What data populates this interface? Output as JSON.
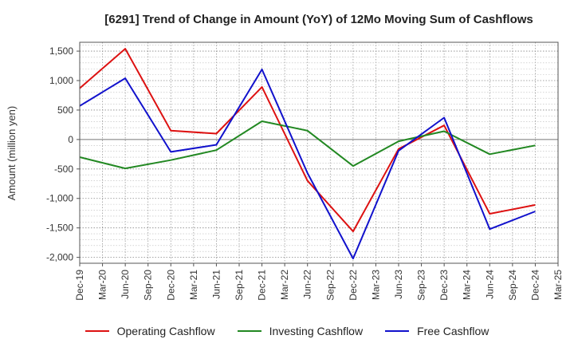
{
  "chart_data": {
    "type": "line",
    "title": "[6291]  Trend of Change in Amount (YoY) of 12Mo Moving Sum of Cashflows",
    "xlabel": "",
    "ylabel": "Amount (million yen)",
    "ylim": [
      -2100,
      1650
    ],
    "yticks": [
      1500,
      1000,
      500,
      0,
      -500,
      -1000,
      -1500,
      -2000
    ],
    "ytick_labels": [
      "1,500",
      "1,000",
      "500",
      "0",
      "-500",
      "-1,000",
      "-1,500",
      "-2,000"
    ],
    "categories": [
      "Dec-19",
      "Mar-20",
      "Jun-20",
      "Sep-20",
      "Dec-20",
      "Mar-21",
      "Jun-21",
      "Sep-21",
      "Dec-21",
      "Mar-22",
      "Jun-22",
      "Sep-22",
      "Dec-22",
      "Mar-23",
      "Jun-23",
      "Sep-23",
      "Dec-23",
      "Mar-24",
      "Jun-24",
      "Sep-24",
      "Dec-24",
      "Mar-25"
    ],
    "grid": true,
    "legend_position": "bottom",
    "series": [
      {
        "name": "Operating Cashflow",
        "color": "#dd1111",
        "values": [
          870,
          null,
          1540,
          null,
          150,
          null,
          100,
          null,
          890,
          null,
          -700,
          null,
          -1560,
          null,
          -160,
          null,
          240,
          null,
          -1260,
          null,
          -1110,
          null
        ]
      },
      {
        "name": "Investing Cashflow",
        "color": "#228822",
        "values": [
          -300,
          null,
          -490,
          null,
          -350,
          null,
          -180,
          null,
          310,
          null,
          150,
          null,
          -450,
          null,
          -30,
          null,
          140,
          null,
          -250,
          null,
          -100,
          null
        ]
      },
      {
        "name": "Free Cashflow",
        "color": "#1111cc",
        "values": [
          570,
          null,
          1040,
          null,
          -210,
          null,
          -90,
          null,
          1190,
          null,
          -570,
          null,
          -2020,
          null,
          -190,
          null,
          370,
          null,
          -1520,
          null,
          -1220,
          null
        ]
      }
    ]
  }
}
